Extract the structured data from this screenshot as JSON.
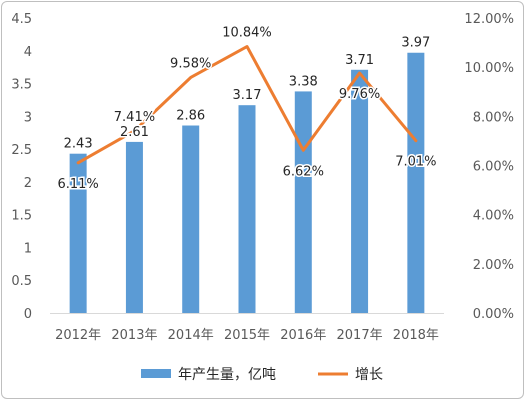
{
  "chart_data": {
    "type": "bar",
    "categories": [
      "2012年",
      "2013年",
      "2014年",
      "2015年",
      "2016年",
      "2017年",
      "2018年"
    ],
    "series": [
      {
        "name": "年产生量，亿吨",
        "type": "bar",
        "axis": "left",
        "values": [
          2.43,
          2.61,
          2.86,
          3.17,
          3.38,
          3.71,
          3.97
        ],
        "labels": [
          "2.43",
          "2.61",
          "2.86",
          "3.17",
          "3.38",
          "3.71",
          "3.97"
        ],
        "color": "#5b9bd5"
      },
      {
        "name": "增长",
        "type": "line",
        "axis": "right",
        "values": [
          6.11,
          7.41,
          9.58,
          10.84,
          6.62,
          9.76,
          7.01
        ],
        "labels": [
          "6.11%",
          "7.41%",
          "9.58%",
          "10.84%",
          "6.62%",
          "9.76%",
          "7.01%"
        ],
        "color": "#ed7d31"
      }
    ],
    "y_left": {
      "range": [
        0,
        4.5
      ],
      "ticks": [
        0,
        0.5,
        1,
        1.5,
        2,
        2.5,
        3,
        3.5,
        4,
        4.5
      ],
      "tick_labels": [
        "0",
        "0.5",
        "1",
        "1.5",
        "2",
        "2.5",
        "3",
        "3.5",
        "4",
        "4.5"
      ]
    },
    "y_right": {
      "range": [
        0,
        12
      ],
      "ticks": [
        0,
        2,
        4,
        6,
        8,
        10,
        12
      ],
      "tick_labels": [
        "0.00%",
        "2.00%",
        "4.00%",
        "6.00%",
        "8.00%",
        "10.00%",
        "12.00%"
      ]
    },
    "grid": false,
    "legend_position": "bottom",
    "axis_color": "#d9d9d9"
  }
}
